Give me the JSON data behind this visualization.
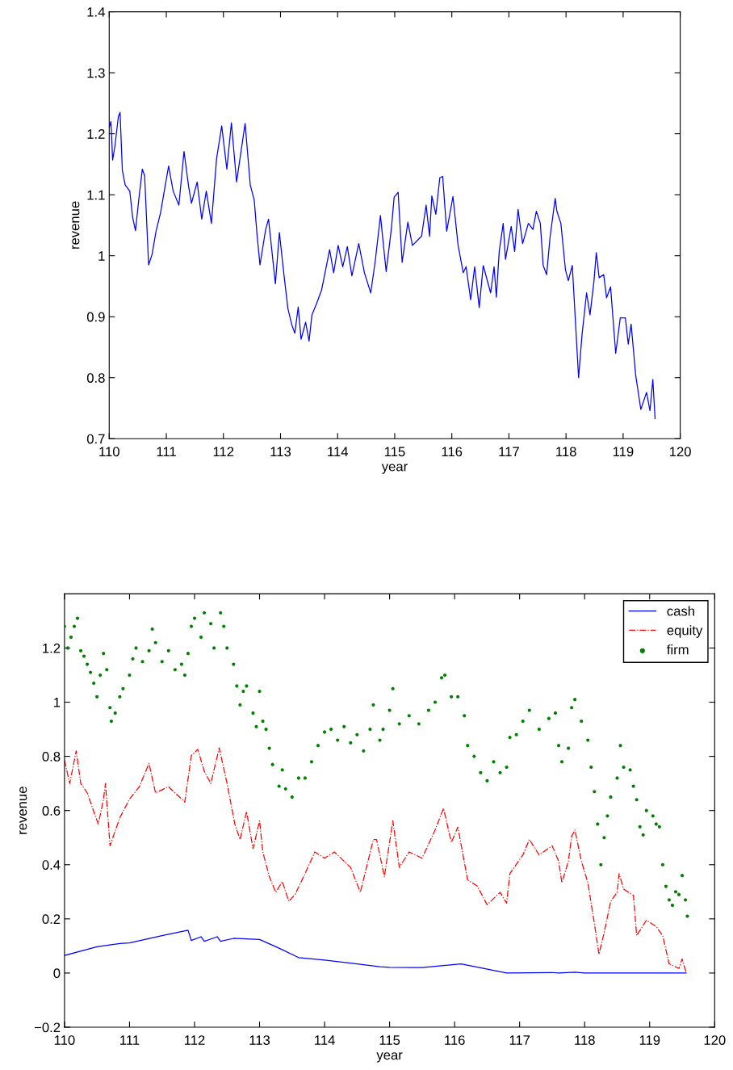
{
  "chart_data": [
    {
      "type": "line",
      "xlabel": "year",
      "ylabel": "revenue",
      "xlim": [
        110,
        120
      ],
      "ylim": [
        0.7,
        1.4
      ],
      "xticks": [
        110,
        111,
        112,
        113,
        114,
        115,
        116,
        117,
        118,
        119,
        120
      ],
      "yticks": [
        0.7,
        0.8,
        0.9,
        1,
        1.1,
        1.2,
        1.3,
        1.4
      ],
      "grid": false,
      "legend": false,
      "series": [
        {
          "color": "#0000ff",
          "line_style": "solid",
          "x": [
            110,
            110.03,
            110.06,
            110.1,
            110.16,
            110.19,
            110.23,
            110.28,
            110.36,
            110.41,
            110.46,
            110.52,
            110.58,
            110.62,
            110.69,
            110.75,
            110.82,
            110.9,
            111.04,
            111.12,
            111.22,
            111.31,
            111.39,
            111.44,
            111.54,
            111.62,
            111.7,
            111.79,
            111.88,
            111.97,
            112.06,
            112.14,
            112.23,
            112.38,
            112.47,
            112.54,
            112.59,
            112.64,
            112.74,
            112.79,
            112.91,
            112.98,
            113.06,
            113.13,
            113.2,
            113.25,
            113.31,
            113.36,
            113.44,
            113.5,
            113.55,
            113.63,
            113.72,
            113.79,
            113.86,
            113.93,
            114.01,
            114.09,
            114.17,
            114.25,
            114.37,
            114.47,
            114.58,
            114.66,
            114.75,
            114.85,
            114.94,
            114.99,
            115.06,
            115.13,
            115.23,
            115.31,
            115.47,
            115.55,
            115.61,
            115.65,
            115.72,
            115.79,
            115.84,
            115.91,
            116.02,
            116.11,
            116.2,
            116.25,
            116.33,
            116.4,
            116.48,
            116.55,
            116.68,
            116.74,
            116.78,
            116.83,
            116.9,
            116.94,
            117.04,
            117.1,
            117.16,
            117.24,
            117.34,
            117.42,
            117.48,
            117.55,
            117.6,
            117.66,
            117.72,
            117.81,
            117.84,
            117.91,
            117.99,
            118.04,
            118.11,
            118.22,
            118.28,
            118.36,
            118.42,
            118.49,
            118.53,
            118.58,
            118.66,
            118.71,
            118.78,
            118.87,
            118.95,
            119.04,
            119.09,
            119.14,
            119.22,
            119.31,
            119.41,
            119.47,
            119.52,
            119.56
          ],
          "values": [
            1.21,
            1.22,
            1.157,
            1.18,
            1.228,
            1.235,
            1.14,
            1.116,
            1.106,
            1.063,
            1.041,
            1.094,
            1.142,
            1.131,
            0.985,
            1.002,
            1.04,
            1.071,
            1.147,
            1.106,
            1.083,
            1.171,
            1.114,
            1.086,
            1.121,
            1.06,
            1.106,
            1.053,
            1.159,
            1.213,
            1.142,
            1.218,
            1.121,
            1.217,
            1.116,
            1.091,
            1.033,
            0.985,
            1.043,
            1.06,
            0.954,
            1.038,
            0.969,
            0.913,
            0.886,
            0.873,
            0.916,
            0.863,
            0.891,
            0.86,
            0.903,
            0.921,
            0.944,
            0.977,
            1.01,
            0.972,
            1.017,
            0.982,
            1.015,
            0.967,
            1.02,
            0.972,
            0.939,
            0.992,
            1.066,
            0.974,
            1.043,
            1.096,
            1.104,
            0.989,
            1.055,
            1.017,
            1.032,
            1.083,
            1.032,
            1.098,
            1.068,
            1.128,
            1.13,
            1.04,
            1.097,
            1.017,
            0.972,
            0.982,
            0.928,
            0.982,
            0.915,
            0.984,
            0.939,
            0.982,
            0.932,
            1.007,
            1.053,
            0.994,
            1.048,
            1.007,
            1.076,
            1.02,
            1.053,
            1.043,
            1.073,
            1.053,
            0.984,
            0.969,
            1.03,
            1.094,
            1.073,
            1.053,
            0.977,
            0.959,
            0.984,
            0.8,
            0.87,
            0.939,
            0.903,
            0.959,
            1.005,
            0.964,
            0.969,
            0.931,
            0.949,
            0.84,
            0.898,
            0.898,
            0.855,
            0.888,
            0.804,
            0.748,
            0.776,
            0.746,
            0.797,
            0.733
          ]
        }
      ]
    },
    {
      "type": "line",
      "xlabel": "year",
      "ylabel": "revenue",
      "xlim": [
        110,
        120
      ],
      "ylim": [
        -0.2,
        1.4
      ],
      "xticks": [
        110,
        111,
        112,
        113,
        114,
        115,
        116,
        117,
        118,
        119,
        120
      ],
      "yticks": [
        {
          "value": -0.2,
          "label": "−0.2"
        },
        0,
        0.2,
        0.4,
        0.6,
        0.8,
        1,
        1.2
      ],
      "grid": false,
      "legend": "top right",
      "series": [
        {
          "name": "cash",
          "type": "line",
          "color": "#0000ff",
          "line_style": "solid",
          "x": [
            110,
            110.5,
            110.85,
            111,
            111.5,
            111.9,
            111.95,
            112.1,
            112.15,
            112.35,
            112.4,
            112.6,
            113,
            113.3,
            113.6,
            114,
            114.5,
            114.85,
            115,
            115.5,
            116.1,
            116.8,
            117.5,
            117.6,
            117.85,
            118,
            119.56
          ],
          "values": [
            0.065,
            0.097,
            0.109,
            0.111,
            0.138,
            0.158,
            0.12,
            0.134,
            0.117,
            0.134,
            0.117,
            0.128,
            0.124,
            0.092,
            0.057,
            0.048,
            0.034,
            0.023,
            0.021,
            0.02,
            0.034,
            0,
            0.002,
            0,
            0.003,
            0,
            0
          ]
        },
        {
          "name": "equity",
          "type": "line",
          "color": "#ff0000",
          "line_style": "dashdot",
          "x": [
            110,
            110.08,
            110.18,
            110.25,
            110.35,
            110.45,
            110.52,
            110.6,
            110.63,
            110.7,
            110.85,
            111,
            111.15,
            111.3,
            111.4,
            111.6,
            111.85,
            111.95,
            112.05,
            112.15,
            112.25,
            112.38,
            112.5,
            112.62,
            112.7,
            112.8,
            112.9,
            113,
            113.05,
            113.15,
            113.25,
            113.35,
            113.45,
            113.55,
            113.7,
            113.85,
            114,
            114.15,
            114.4,
            114.55,
            114.75,
            114.8,
            114.92,
            115.05,
            115.15,
            115.3,
            115.5,
            115.7,
            115.83,
            115.95,
            116.05,
            116.2,
            116.35,
            116.5,
            116.7,
            116.8,
            116.85,
            117.05,
            117.15,
            117.3,
            117.5,
            117.6,
            117.65,
            117.75,
            117.8,
            117.85,
            117.95,
            118.05,
            118.15,
            118.22,
            118.3,
            118.4,
            118.5,
            118.53,
            118.6,
            118.75,
            118.8,
            118.95,
            119.1,
            119.2,
            119.3,
            119.45,
            119.5,
            119.56
          ],
          "values": [
            0.786,
            0.7,
            0.82,
            0.7,
            0.665,
            0.596,
            0.55,
            0.642,
            0.7,
            0.47,
            0.573,
            0.642,
            0.688,
            0.774,
            0.665,
            0.688,
            0.631,
            0.803,
            0.826,
            0.745,
            0.7,
            0.831,
            0.7,
            0.55,
            0.493,
            0.596,
            0.459,
            0.562,
            0.447,
            0.356,
            0.298,
            0.338,
            0.264,
            0.292,
            0.367,
            0.447,
            0.424,
            0.447,
            0.39,
            0.298,
            0.493,
            0.493,
            0.356,
            0.562,
            0.39,
            0.447,
            0.424,
            0.528,
            0.608,
            0.482,
            0.539,
            0.344,
            0.321,
            0.252,
            0.298,
            0.258,
            0.367,
            0.436,
            0.493,
            0.436,
            0.47,
            0.413,
            0.333,
            0.413,
            0.505,
            0.528,
            0.413,
            0.333,
            0.183,
            0.069,
            0.149,
            0.264,
            0.298,
            0.367,
            0.31,
            0.287,
            0.138,
            0.195,
            0.172,
            0.138,
            0.034,
            0.017,
            0.052,
            0.002
          ]
        },
        {
          "name": "firm",
          "type": "scatter",
          "color": "#008000",
          "marker": "circle",
          "x": [
            110.0,
            110.05,
            110.1,
            110.15,
            110.2,
            110.25,
            110.3,
            110.35,
            110.4,
            110.45,
            110.5,
            110.55,
            110.6,
            110.65,
            110.7,
            110.72,
            110.78,
            110.85,
            110.9,
            111.0,
            111.05,
            111.1,
            111.2,
            111.3,
            111.35,
            111.4,
            111.5,
            111.6,
            111.7,
            111.8,
            111.85,
            111.9,
            111.95,
            112.0,
            112.1,
            112.15,
            112.25,
            112.3,
            112.4,
            112.45,
            112.5,
            112.6,
            112.65,
            112.7,
            112.75,
            112.8,
            112.9,
            112.95,
            113.0,
            113.05,
            113.1,
            113.15,
            113.2,
            113.3,
            113.35,
            113.4,
            113.5,
            113.6,
            113.7,
            113.8,
            113.9,
            114.0,
            114.1,
            114.2,
            114.3,
            114.4,
            114.5,
            114.6,
            114.7,
            114.75,
            114.85,
            114.9,
            115.0,
            115.05,
            115.15,
            115.3,
            115.45,
            115.6,
            115.7,
            115.8,
            115.85,
            115.95,
            116.05,
            116.15,
            116.2,
            116.3,
            116.4,
            116.5,
            116.6,
            116.7,
            116.8,
            116.85,
            116.95,
            117.05,
            117.15,
            117.3,
            117.45,
            117.55,
            117.6,
            117.65,
            117.75,
            117.8,
            117.85,
            117.95,
            118.05,
            118.1,
            118.15,
            118.2,
            118.25,
            118.3,
            118.35,
            118.4,
            118.5,
            118.55,
            118.6,
            118.7,
            118.75,
            118.8,
            118.85,
            118.9,
            118.95,
            119.05,
            119.1,
            119.15,
            119.2,
            119.25,
            119.3,
            119.35,
            119.4,
            119.45,
            119.5,
            119.55,
            119.58
          ],
          "values": [
            1.28,
            1.2,
            1.24,
            1.28,
            1.31,
            1.19,
            1.17,
            1.14,
            1.11,
            1.07,
            1.02,
            1.1,
            1.18,
            1.12,
            0.98,
            0.93,
            0.96,
            1.02,
            1.05,
            1.1,
            1.16,
            1.2,
            1.15,
            1.19,
            1.27,
            1.22,
            1.15,
            1.19,
            1.12,
            1.14,
            1.1,
            1.18,
            1.28,
            1.31,
            1.24,
            1.33,
            1.29,
            1.2,
            1.33,
            1.28,
            1.2,
            1.14,
            1.06,
            0.99,
            1.04,
            1.06,
            0.96,
            0.91,
            1.04,
            0.93,
            0.9,
            0.83,
            0.77,
            0.69,
            0.75,
            0.68,
            0.65,
            0.72,
            0.72,
            0.78,
            0.84,
            0.89,
            0.9,
            0.86,
            0.91,
            0.85,
            0.88,
            0.82,
            0.9,
            0.99,
            0.86,
            0.9,
            0.97,
            1.05,
            0.92,
            0.95,
            0.92,
            0.97,
            1.0,
            1.09,
            1.1,
            1.02,
            1.02,
            0.95,
            0.84,
            0.8,
            0.74,
            0.71,
            0.78,
            0.74,
            0.76,
            0.87,
            0.88,
            0.93,
            0.97,
            0.9,
            0.94,
            0.96,
            0.84,
            0.78,
            0.83,
            0.98,
            1.01,
            0.93,
            0.86,
            0.76,
            0.67,
            0.55,
            0.4,
            0.5,
            0.58,
            0.65,
            0.72,
            0.84,
            0.76,
            0.75,
            0.69,
            0.64,
            0.54,
            0.51,
            0.6,
            0.58,
            0.55,
            0.54,
            0.4,
            0.32,
            0.27,
            0.25,
            0.3,
            0.29,
            0.36,
            0.27,
            0.21
          ]
        }
      ]
    }
  ]
}
